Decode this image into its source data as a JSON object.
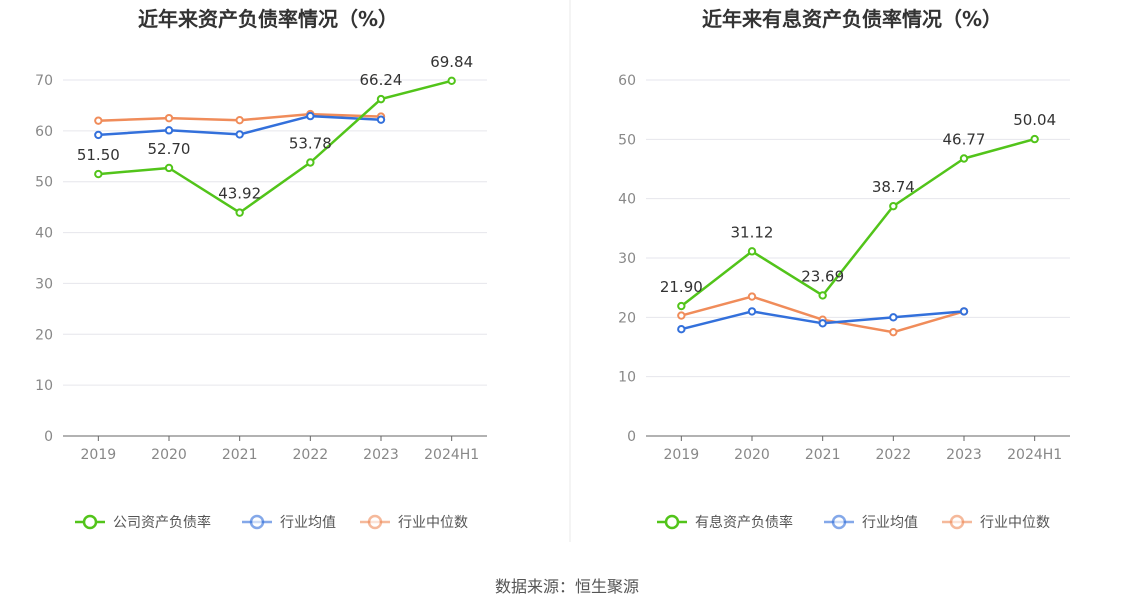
{
  "source": "数据来源：恒生聚源",
  "chart_data": [
    {
      "type": "line",
      "title": "近年来资产负债率情况（%）",
      "categories": [
        "2019",
        "2020",
        "2021",
        "2022",
        "2023",
        "2024H1"
      ],
      "ylim": [
        0,
        70
      ],
      "yticks": [
        "0",
        "10",
        "20",
        "30",
        "40",
        "50",
        "60",
        "70"
      ],
      "grid": true,
      "legend": "bottom",
      "series": [
        {
          "name": "公司资产负债率",
          "color": "#52c41a",
          "values": [
            51.5,
            52.7,
            43.92,
            53.78,
            66.24,
            69.84
          ],
          "labels": [
            "51.50",
            "52.70",
            "43.92",
            "53.78",
            "66.24",
            "69.84"
          ]
        },
        {
          "name": "行业均值",
          "color": "#3370db",
          "values": [
            59.2,
            60.1,
            59.3,
            62.9,
            62.2,
            null
          ]
        },
        {
          "name": "行业中位数",
          "color": "#f08c5a",
          "values": [
            62.0,
            62.5,
            62.1,
            63.3,
            62.8,
            null
          ]
        }
      ]
    },
    {
      "type": "line",
      "title": "近年来有息资产负债率情况（%）",
      "categories": [
        "2019",
        "2020",
        "2021",
        "2022",
        "2023",
        "2024H1"
      ],
      "ylim": [
        0,
        60
      ],
      "yticks": [
        "0",
        "10",
        "20",
        "30",
        "40",
        "50",
        "60"
      ],
      "grid": true,
      "legend": "bottom",
      "series": [
        {
          "name": "有息资产负债率",
          "color": "#52c41a",
          "values": [
            21.9,
            31.12,
            23.69,
            38.74,
            46.77,
            50.04
          ],
          "labels": [
            "21.90",
            "31.12",
            "23.69",
            "38.74",
            "46.77",
            "50.04"
          ]
        },
        {
          "name": "行业均值",
          "color": "#3370db",
          "values": [
            18.0,
            21.0,
            19.0,
            20.0,
            21.0,
            null
          ]
        },
        {
          "name": "行业中位数",
          "color": "#f08c5a",
          "values": [
            20.3,
            23.5,
            19.6,
            17.5,
            21.0,
            null
          ]
        }
      ]
    }
  ]
}
